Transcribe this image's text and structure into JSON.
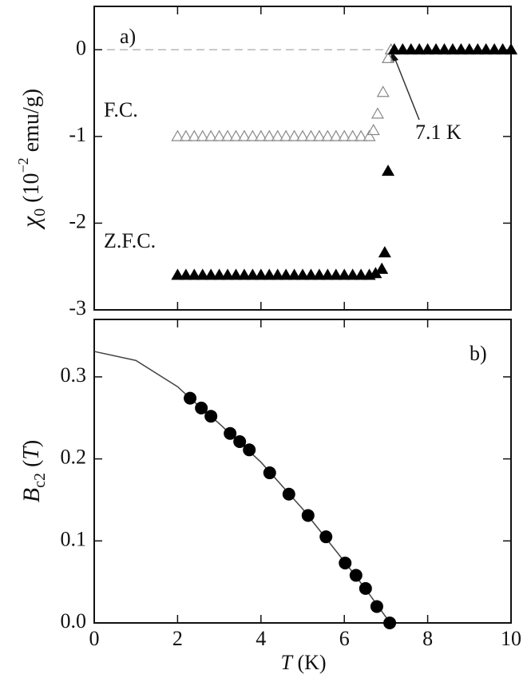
{
  "chart_data": [
    {
      "type": "scatter",
      "label": "a)",
      "annotation": "7.1 K",
      "ylabel_parts": [
        "χ",
        "0",
        " (10",
        "−2",
        " emu/g)"
      ],
      "xlim": [
        0,
        10
      ],
      "xticks": [
        0,
        2,
        4,
        6,
        8,
        10
      ],
      "ylim": [
        -3,
        0.5
      ],
      "yticks": [
        0,
        -1,
        -2,
        -3
      ],
      "hline": 0,
      "hline_color": "#aaaaaa",
      "series": [
        {
          "name": "F.C.",
          "style": "triangle-open",
          "color": "#888888",
          "x": [
            2.0,
            2.2,
            2.4,
            2.6,
            2.8,
            3.0,
            3.2,
            3.4,
            3.6,
            3.8,
            4.0,
            4.2,
            4.4,
            4.6,
            4.8,
            5.0,
            5.2,
            5.4,
            5.6,
            5.8,
            6.0,
            6.2,
            6.4,
            6.6,
            6.7,
            6.8,
            6.93,
            7.05,
            7.12,
            7.2,
            7.4,
            7.6,
            7.8,
            8.0,
            8.2,
            8.4,
            8.6,
            8.8,
            9.0,
            9.2,
            9.4,
            9.6,
            9.8,
            10.0
          ],
          "values": [
            -1,
            -1,
            -1,
            -1,
            -1,
            -1,
            -1,
            -1,
            -1,
            -1,
            -1,
            -1,
            -1,
            -1,
            -1,
            -1,
            -1,
            -1,
            -1,
            -1,
            -1,
            -1,
            -1,
            -1,
            -0.93,
            -0.74,
            -0.49,
            -0.1,
            0,
            0,
            0,
            0,
            0,
            0,
            0,
            0,
            0,
            0,
            0,
            0,
            0,
            0,
            0,
            0
          ]
        },
        {
          "name": "Z.F.C.",
          "style": "triangle",
          "color": "#000000",
          "x": [
            2.0,
            2.2,
            2.4,
            2.6,
            2.8,
            3.0,
            3.2,
            3.4,
            3.6,
            3.8,
            4.0,
            4.2,
            4.4,
            4.6,
            4.8,
            5.0,
            5.2,
            5.4,
            5.6,
            5.8,
            6.0,
            6.2,
            6.4,
            6.6,
            6.75,
            6.9,
            6.97,
            7.05,
            7.2,
            7.4,
            7.6,
            7.8,
            8.0,
            8.2,
            8.4,
            8.6,
            8.8,
            9.0,
            9.2,
            9.4,
            9.6,
            9.8,
            10.0
          ],
          "values": [
            -2.6,
            -2.6,
            -2.6,
            -2.6,
            -2.6,
            -2.6,
            -2.6,
            -2.6,
            -2.6,
            -2.6,
            -2.6,
            -2.6,
            -2.6,
            -2.6,
            -2.6,
            -2.6,
            -2.6,
            -2.6,
            -2.6,
            -2.6,
            -2.6,
            -2.6,
            -2.6,
            -2.6,
            -2.58,
            -2.53,
            -2.34,
            -1.4,
            0,
            0,
            0,
            0,
            0,
            0,
            0,
            0,
            0,
            0,
            0,
            0,
            0,
            0,
            0
          ]
        }
      ]
    },
    {
      "type": "scatter",
      "label": "b)",
      "ylabel_parts": [
        "B",
        "c2",
        " (",
        "T",
        ")"
      ],
      "xlabel_parts": [
        "T",
        " (K)"
      ],
      "xlim": [
        0,
        10
      ],
      "xticks": [
        0,
        2,
        4,
        6,
        8,
        10
      ],
      "ylim": [
        0,
        0.37
      ],
      "yticks": [
        {
          "value": 0,
          "label": "0.0"
        },
        0.1,
        0.2,
        0.3
      ],
      "series": [
        {
          "style": "line",
          "color": "#444444",
          "x": [
            0,
            1,
            2,
            2.3,
            3,
            4,
            5,
            6,
            6.5,
            7.1
          ],
          "values": [
            0.331,
            0.32,
            0.288,
            0.274,
            0.243,
            0.196,
            0.139,
            0.075,
            0.042,
            0
          ]
        },
        {
          "style": "circle",
          "color": "#000000",
          "x": [
            2.3,
            2.57,
            2.8,
            3.26,
            3.49,
            3.72,
            4.21,
            4.67,
            5.13,
            5.56,
            6.02,
            6.28,
            6.51,
            6.78,
            7.09
          ],
          "values": [
            0.274,
            0.262,
            0.252,
            0.231,
            0.221,
            0.211,
            0.183,
            0.157,
            0.131,
            0.105,
            0.073,
            0.058,
            0.042,
            0.02,
            0
          ]
        }
      ]
    }
  ]
}
